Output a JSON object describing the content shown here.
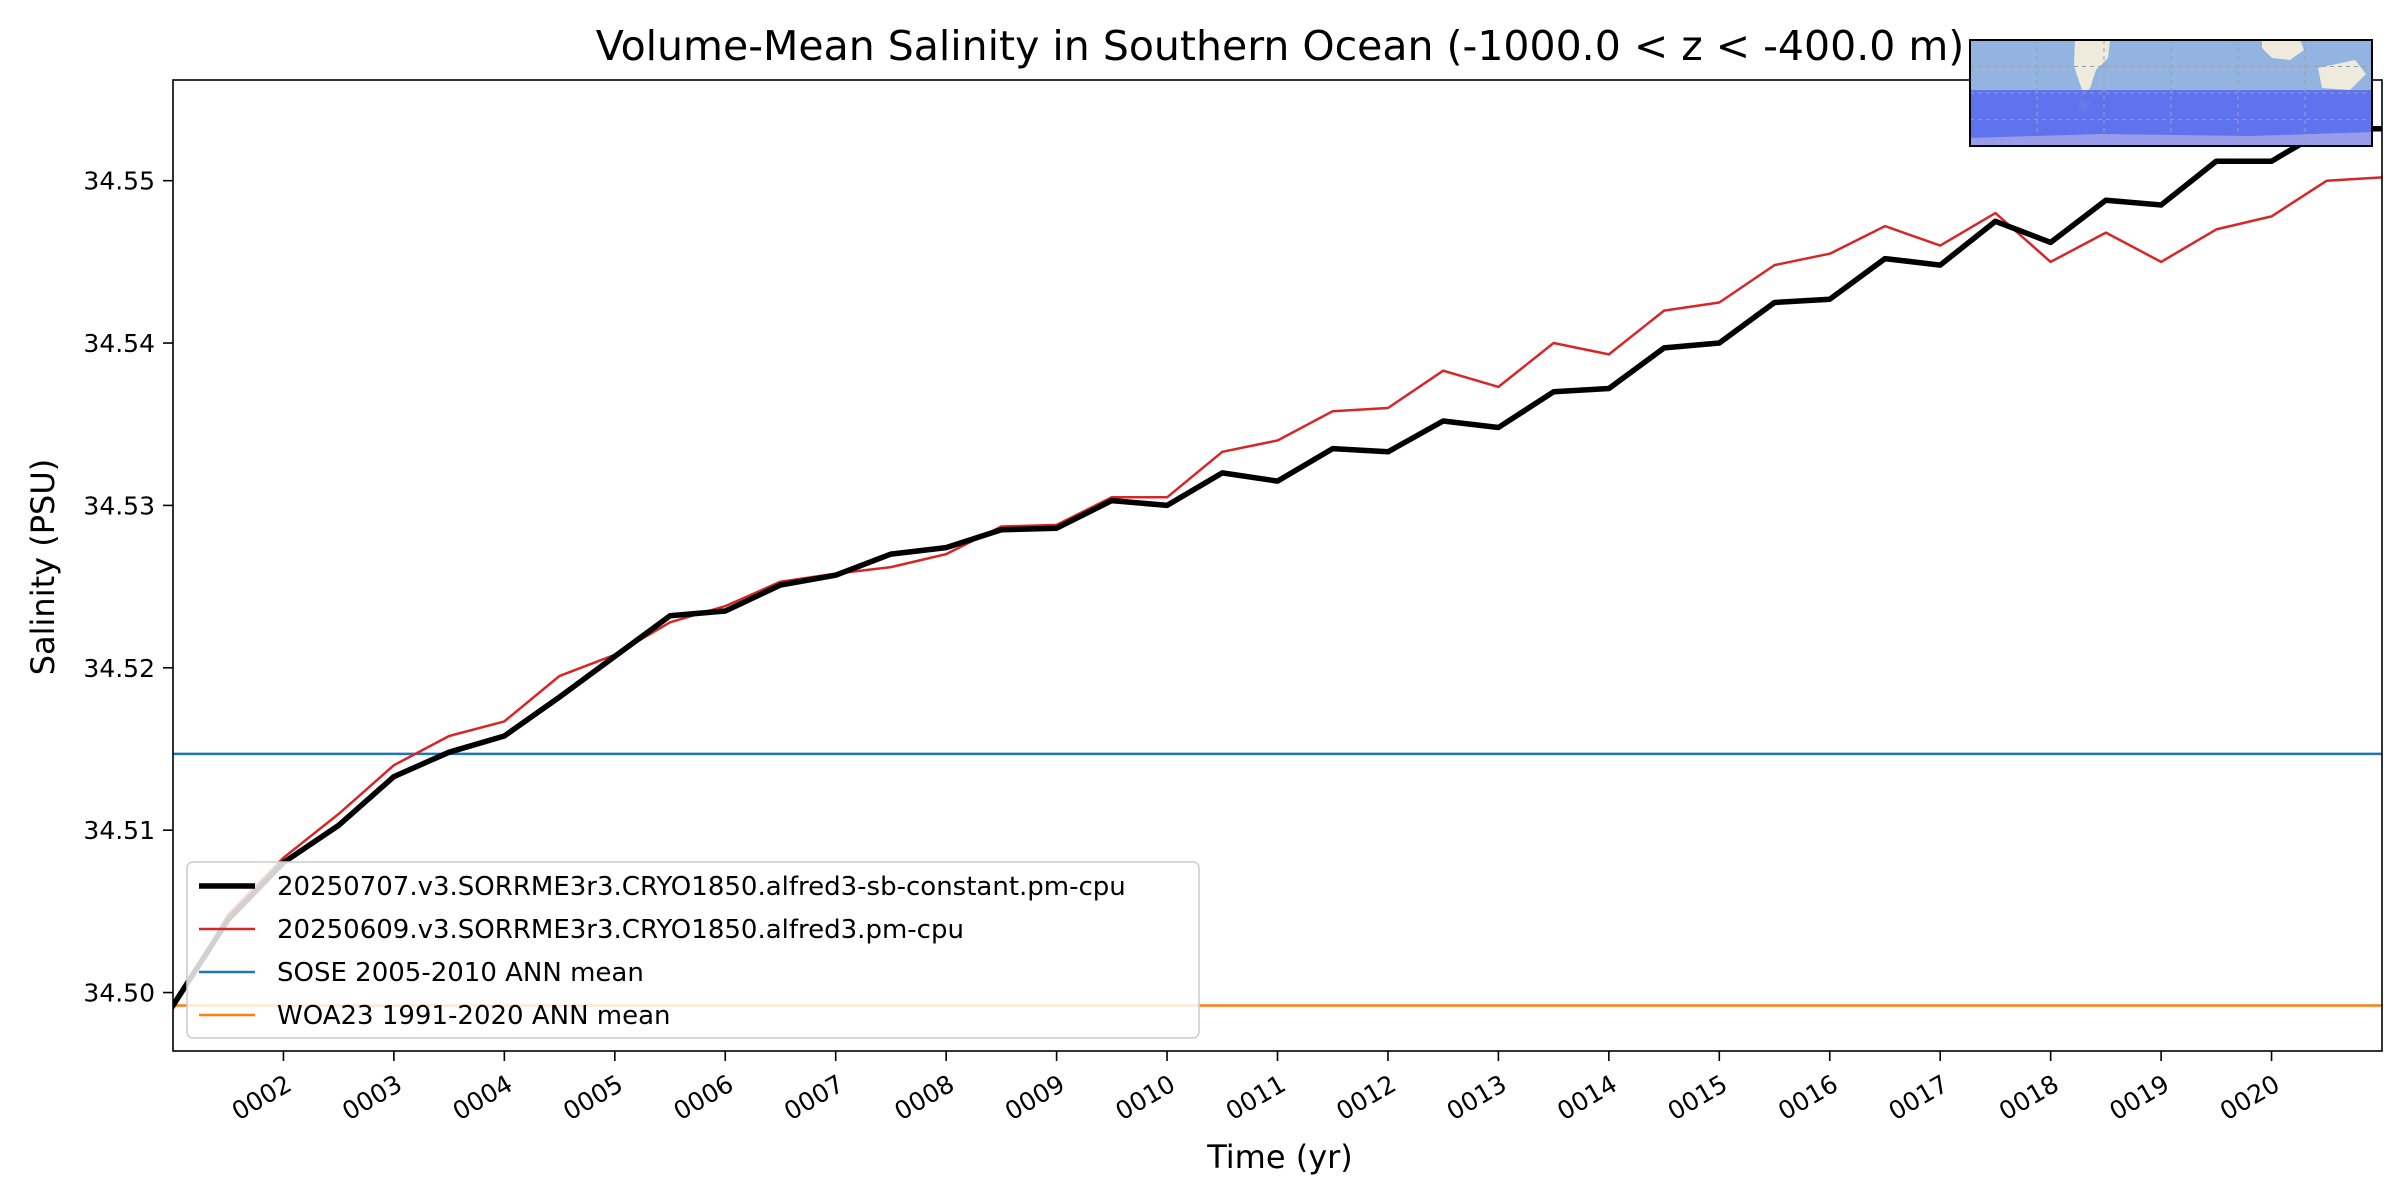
{
  "chart_data": {
    "type": "line",
    "title": "Volume-Mean Salinity in Southern Ocean (-1000.0 < z < -400.0 m)",
    "xlabel": "Time (yr)",
    "ylabel": "Salinity (PSU)",
    "xlim": [
      1.0,
      21.0
    ],
    "ylim": [
      34.4964,
      34.5562
    ],
    "x_ticks": [
      {
        "value": 2,
        "label": "0002"
      },
      {
        "value": 3,
        "label": "0003"
      },
      {
        "value": 4,
        "label": "0004"
      },
      {
        "value": 5,
        "label": "0005"
      },
      {
        "value": 6,
        "label": "0006"
      },
      {
        "value": 7,
        "label": "0007"
      },
      {
        "value": 8,
        "label": "0008"
      },
      {
        "value": 9,
        "label": "0009"
      },
      {
        "value": 10,
        "label": "0010"
      },
      {
        "value": 11,
        "label": "0011"
      },
      {
        "value": 12,
        "label": "0012"
      },
      {
        "value": 13,
        "label": "0013"
      },
      {
        "value": 14,
        "label": "0014"
      },
      {
        "value": 15,
        "label": "0015"
      },
      {
        "value": 16,
        "label": "0016"
      },
      {
        "value": 17,
        "label": "0017"
      },
      {
        "value": 18,
        "label": "0018"
      },
      {
        "value": 19,
        "label": "0019"
      },
      {
        "value": 20,
        "label": "0020"
      }
    ],
    "y_ticks": [
      {
        "value": 34.5,
        "label": "34.50"
      },
      {
        "value": 34.51,
        "label": "34.51"
      },
      {
        "value": 34.52,
        "label": "34.52"
      },
      {
        "value": 34.53,
        "label": "34.53"
      },
      {
        "value": 34.54,
        "label": "34.54"
      },
      {
        "value": 34.55,
        "label": "34.55"
      }
    ],
    "grid": false,
    "legend_position": "lower-left",
    "series": [
      {
        "name": "20250707.v3.SORRME3r3.CRYO1850.alfred3-sb-constant.pm-cpu",
        "color": "#000000",
        "x": [
          1.0,
          1.5,
          2.0,
          2.5,
          3.0,
          3.5,
          4.0,
          4.5,
          5.0,
          5.5,
          6.0,
          6.5,
          7.0,
          7.5,
          8.0,
          8.5,
          9.0,
          9.5,
          10.0,
          10.5,
          11.0,
          11.5,
          12.0,
          12.5,
          13.0,
          13.5,
          14.0,
          14.5,
          15.0,
          15.5,
          16.0,
          16.5,
          17.0,
          17.5,
          18.0,
          18.5,
          19.0,
          19.5,
          20.0,
          20.5,
          21.0
        ],
        "y": [
          34.4992,
          34.5045,
          34.508,
          34.5103,
          34.5133,
          34.5148,
          34.5158,
          34.5182,
          34.5207,
          34.5232,
          34.5235,
          34.5251,
          34.5257,
          34.527,
          34.5274,
          34.5285,
          34.5286,
          34.5303,
          34.53,
          34.532,
          34.5315,
          34.5335,
          34.5333,
          34.5352,
          34.5348,
          34.537,
          34.5372,
          34.5397,
          34.54,
          34.5425,
          34.5427,
          34.5452,
          34.5448,
          34.5475,
          34.5462,
          34.5488,
          34.5485,
          34.5512,
          34.5512,
          34.5532,
          34.5532
        ]
      },
      {
        "name": "20250609.v3.SORRME3r3.CRYO1850.alfred3.pm-cpu",
        "color": "#d62728",
        "x": [
          1.0,
          1.5,
          2.0,
          2.5,
          3.0,
          3.5,
          4.0,
          4.5,
          5.0,
          5.5,
          6.0,
          6.5,
          7.0,
          7.5,
          8.0,
          8.5,
          9.0,
          9.5,
          10.0,
          10.5,
          11.0,
          11.5,
          12.0,
          12.5,
          13.0,
          13.5,
          14.0,
          14.5,
          15.0,
          15.5,
          16.0,
          16.5,
          17.0,
          17.5,
          18.0,
          18.5,
          19.0,
          19.5,
          20.0,
          20.5,
          21.0
        ],
        "y": [
          34.499,
          34.5048,
          34.5083,
          34.511,
          34.514,
          34.5158,
          34.5167,
          34.5195,
          34.5208,
          34.5228,
          34.5238,
          34.5253,
          34.5258,
          34.5262,
          34.527,
          34.5287,
          34.5288,
          34.5305,
          34.5305,
          34.5333,
          34.534,
          34.5358,
          34.536,
          34.5383,
          34.5373,
          34.54,
          34.5393,
          34.542,
          34.5425,
          34.5448,
          34.5455,
          34.5472,
          34.546,
          34.548,
          34.545,
          34.5468,
          34.545,
          34.547,
          34.5478,
          34.55,
          34.5502
        ]
      },
      {
        "name": "SOSE 2005-2010 ANN mean",
        "color": "#1f77b4",
        "x": [
          1.0,
          21.0
        ],
        "y": [
          34.5147,
          34.5147
        ]
      },
      {
        "name": "WOA23 1991-2020 ANN mean",
        "color": "#ff7f0e",
        "x": [
          1.0,
          21.0
        ],
        "y": [
          34.4992,
          34.4992
        ]
      }
    ]
  },
  "inset_map": {
    "icon": "southern-ocean-region-map-icon",
    "ocean_color": "#93b4e0",
    "region_color": "#5b6cf0",
    "land_color": "#efebdc"
  }
}
